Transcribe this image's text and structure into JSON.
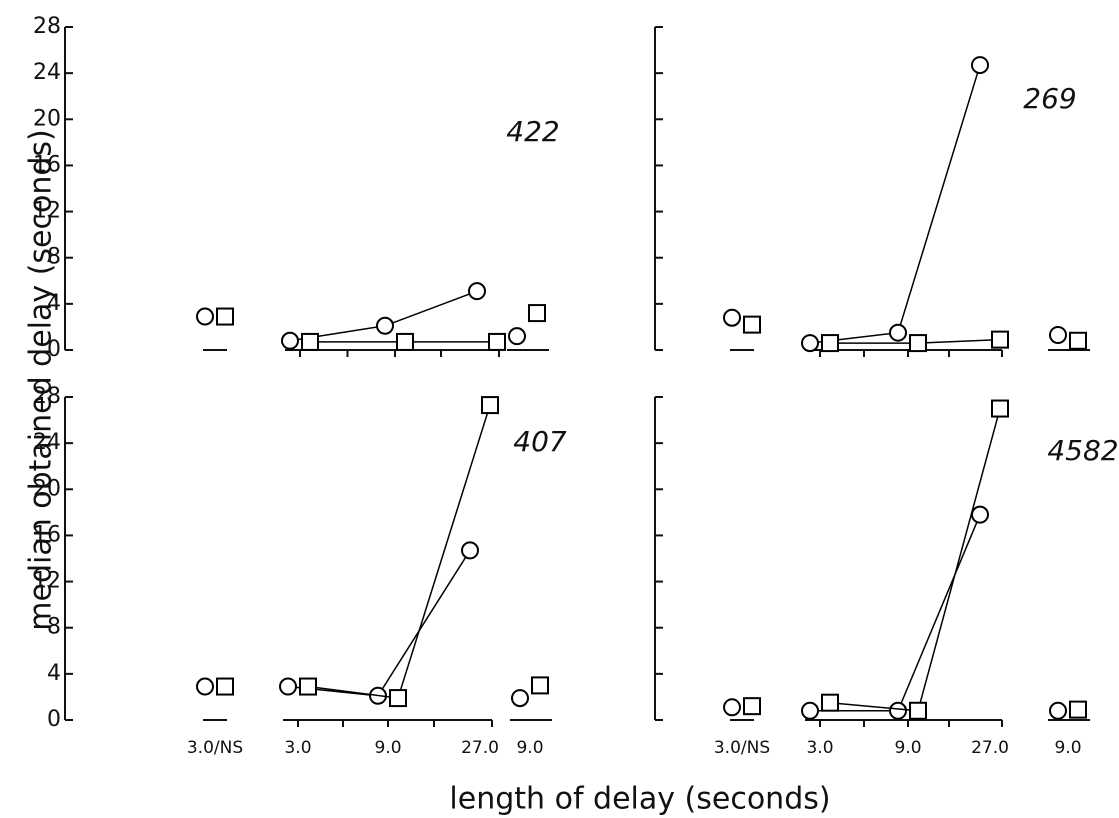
{
  "axis_labels": {
    "y": "median obtained delay (seconds)",
    "x": "length of delay (seconds)"
  },
  "chart_data": [
    {
      "type": "line",
      "label": "422",
      "ylim": [
        0,
        28
      ],
      "yticks": [
        0,
        4,
        8,
        12,
        16,
        20,
        24,
        28
      ],
      "show_ytick_labels": true,
      "series": [
        {
          "marker": "circle",
          "color": "#000000",
          "values": [
            2.9,
            0.8,
            2.1,
            5.1,
            1.2
          ]
        },
        {
          "marker": "square",
          "color": "#000000",
          "values": [
            2.9,
            0.7,
            0.7,
            0.7,
            3.2
          ]
        }
      ]
    },
    {
      "type": "line",
      "label": "269",
      "ylim": [
        0,
        28
      ],
      "yticks": [
        0,
        4,
        8,
        12,
        16,
        20,
        24,
        28
      ],
      "show_ytick_labels": false,
      "series": [
        {
          "marker": "circle",
          "color": "#000000",
          "values": [
            2.8,
            0.6,
            1.5,
            24.7,
            1.3
          ]
        },
        {
          "marker": "square",
          "color": "#000000",
          "values": [
            2.2,
            0.6,
            0.6,
            0.9,
            0.8
          ]
        }
      ]
    },
    {
      "type": "line",
      "label": "407",
      "ylim": [
        0,
        28
      ],
      "yticks": [
        0,
        4,
        8,
        12,
        16,
        20,
        24,
        28
      ],
      "show_ytick_labels": true,
      "categories": [
        "3.0/NS",
        "3.0",
        "9.0",
        "27.0",
        "9.0"
      ],
      "series": [
        {
          "marker": "circle",
          "color": "#000000",
          "values": [
            2.9,
            2.9,
            2.1,
            14.7,
            1.9
          ]
        },
        {
          "marker": "square",
          "color": "#000000",
          "values": [
            2.9,
            2.9,
            1.9,
            27.3,
            3.0
          ]
        }
      ]
    },
    {
      "type": "line",
      "label": "4582",
      "ylim": [
        0,
        28
      ],
      "yticks": [
        0,
        4,
        8,
        12,
        16,
        20,
        24,
        28
      ],
      "show_ytick_labels": false,
      "categories": [
        "3.0/NS",
        "3.0",
        "9.0",
        "27.0",
        "9.0"
      ],
      "series": [
        {
          "marker": "circle",
          "color": "#000000",
          "values": [
            1.1,
            0.8,
            0.8,
            17.8,
            0.8
          ]
        },
        {
          "marker": "square",
          "color": "#000000",
          "values": [
            1.2,
            1.5,
            0.8,
            27.0,
            0.9
          ]
        }
      ]
    }
  ]
}
